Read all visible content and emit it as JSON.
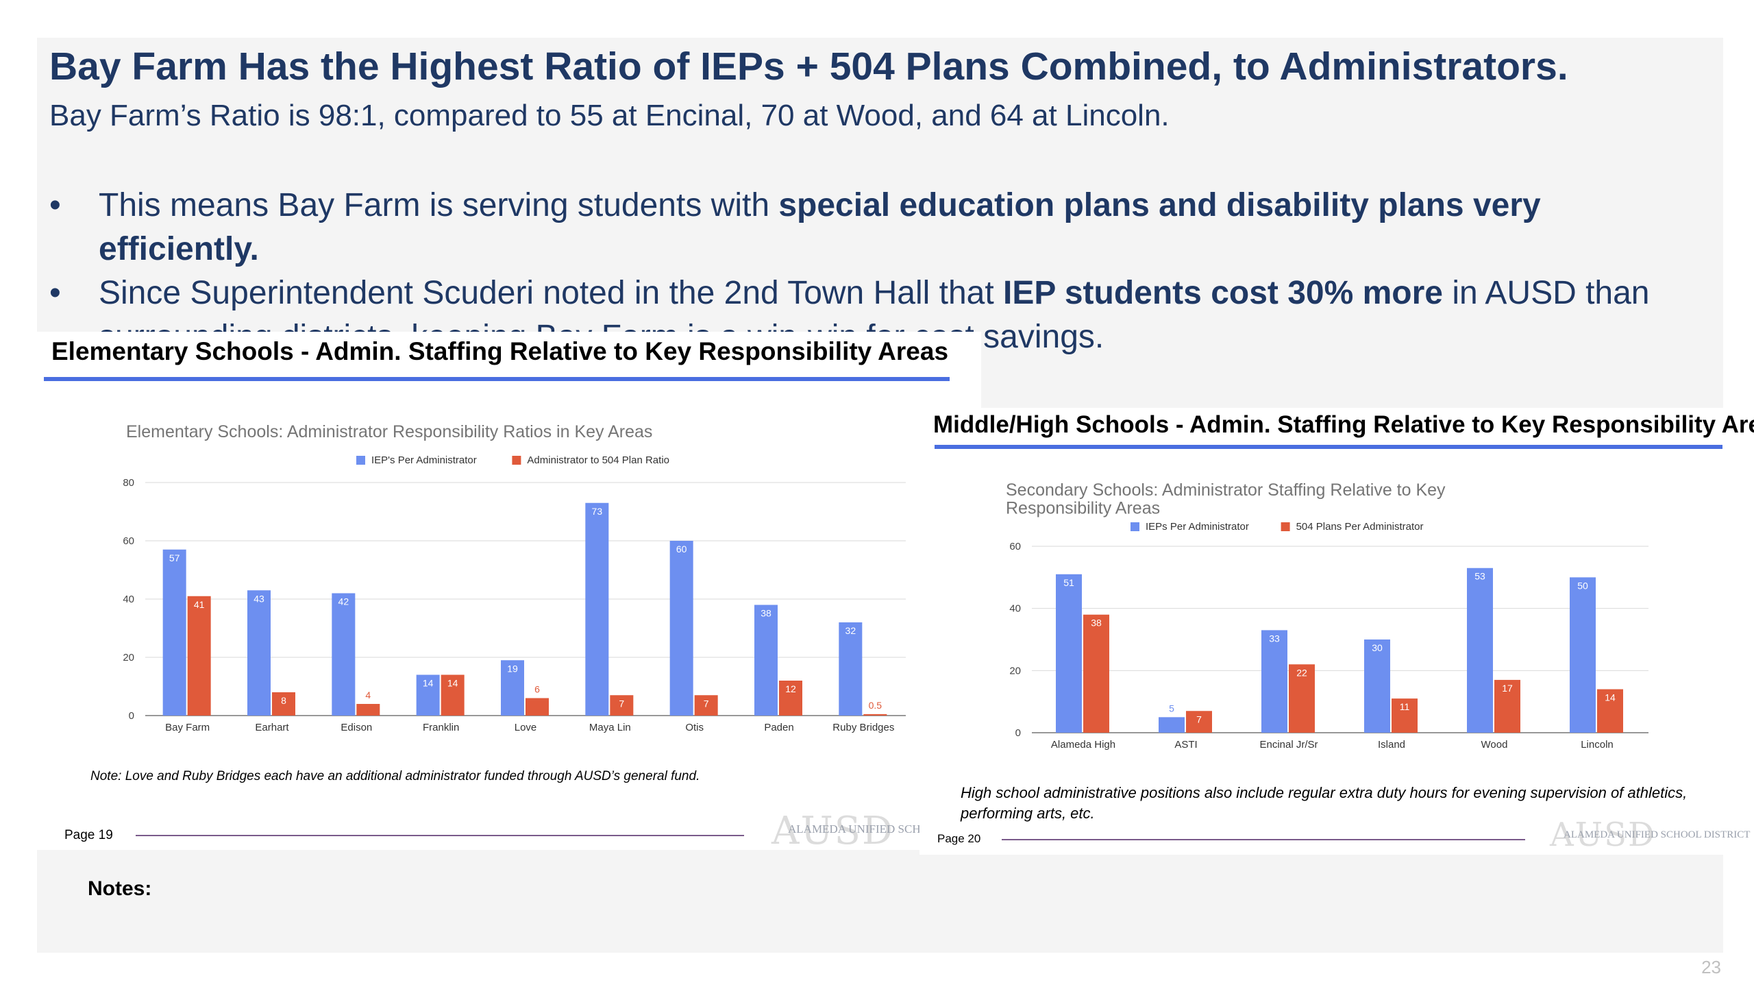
{
  "slide": {
    "title": "Bay Farm Has the Highest Ratio of IEPs + 504 Plans Combined, to Administrators.",
    "subtitle": "Bay Farm’s Ratio is 98:1, compared to 55 at Encinal, 70 at Wood, and 64 at Lincoln.",
    "bullet_char": "•",
    "bullets": [
      {
        "pre": "This means Bay Farm is serving students with ",
        "bold": "special education plans and disability plans very efficiently.",
        "post": ""
      },
      {
        "pre": "Since Superintendent Scuderi noted in the 2nd Town Hall that ",
        "bold": "IEP students cost 30% more",
        "post": " in AUSD than surrounding districts, keeping Bay Farm is a win-win for cost savings."
      }
    ],
    "notes_label": "Notes:",
    "page_number": "23"
  },
  "elementary": {
    "section_heading": "Elementary Schools - Admin. Staffing Relative to Key Responsibility Areas",
    "note": "Note: Love and Ruby Bridges each have an additional administrator funded through AUSD’s general fund.",
    "page_label": "Page 19",
    "watermark_letters": "AUSD",
    "watermark_name": "ALAMEDA UNIFIED SCHOOL"
  },
  "secondary": {
    "section_heading": "Middle/High Schools - Admin. Staffing Relative to Key Responsibility Areas",
    "note": "High school administrative positions also include regular extra duty hours for evening supervision of athletics, performing arts, etc.",
    "page_label": "Page 20",
    "watermark_letters": "AUSD",
    "watermark_name": "ALAMEDA UNIFIED SCHOOL DISTRICT"
  },
  "colors": {
    "title": "#1f3864",
    "accent_rule": "#4a6ee0",
    "series_blue": "#6d8ff0",
    "series_red": "#e05a3a",
    "grid": "#d9d9d9",
    "chart_title": "#757575"
  },
  "chart_data": [
    {
      "type": "bar",
      "title": "Elementary Schools: Administrator Responsibility Ratios in Key Areas",
      "categories": [
        "Bay Farm",
        "Earhart",
        "Edison",
        "Franklin",
        "Love",
        "Maya Lin",
        "Otis",
        "Paden",
        "Ruby Bridges"
      ],
      "series": [
        {
          "name": "IEP's Per Administrator",
          "values": [
            57,
            43,
            42,
            14,
            19,
            73,
            60,
            38,
            32
          ]
        },
        {
          "name": "Administrator to 504 Plan Ratio",
          "values": [
            41,
            8,
            4,
            14,
            6,
            7,
            7,
            12,
            0.5
          ]
        }
      ],
      "ylim": [
        0,
        80
      ],
      "yticks": [
        0,
        20,
        40,
        60,
        80
      ],
      "grid": true,
      "legend": "top"
    },
    {
      "type": "bar",
      "title": "Secondary Schools: Administrator Staffing Relative to Key Responsibility Areas",
      "categories": [
        "Alameda High",
        "ASTI",
        "Encinal Jr/Sr",
        "Island",
        "Wood",
        "Lincoln"
      ],
      "series": [
        {
          "name": "IEPs Per Administrator",
          "values": [
            51,
            5,
            33,
            30,
            53,
            50
          ]
        },
        {
          "name": "504 Plans Per Administrator",
          "values": [
            38,
            7,
            22,
            11,
            17,
            14
          ]
        }
      ],
      "ylim": [
        0,
        60
      ],
      "yticks": [
        0,
        20,
        40,
        60
      ],
      "grid": true,
      "legend": "top"
    }
  ]
}
